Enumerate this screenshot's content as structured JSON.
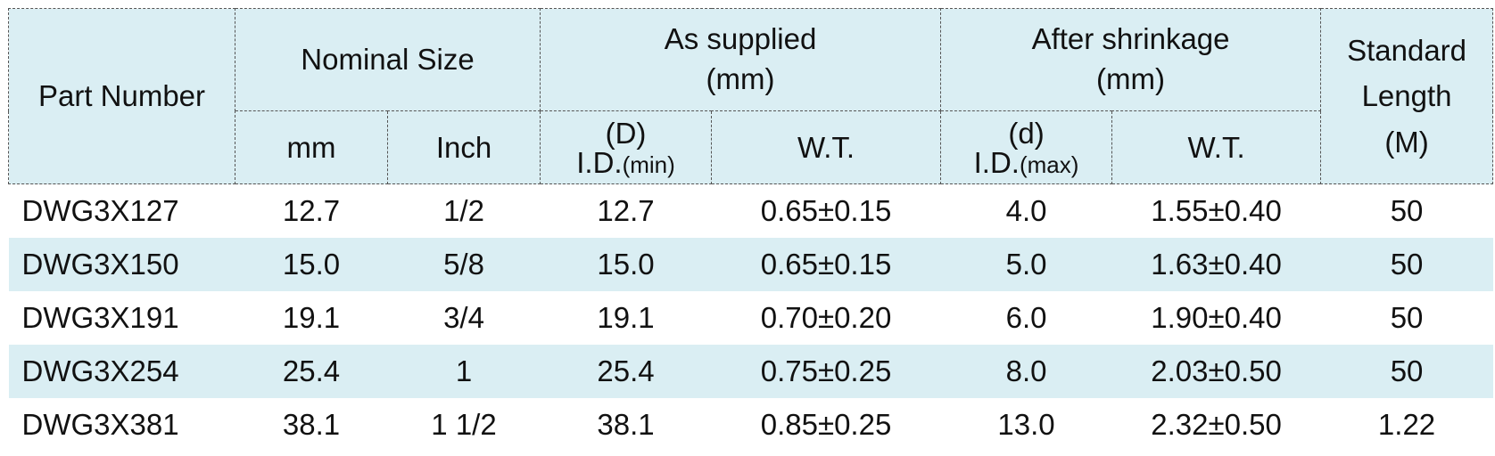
{
  "table": {
    "header": {
      "part_number": "Part Number",
      "nominal_size": {
        "title": "Nominal Size",
        "mm": "mm",
        "inch": "Inch"
      },
      "as_supplied": {
        "title": "As supplied",
        "unit": "(mm)",
        "id_symbol": "(D)",
        "id_label": "I.D.",
        "id_qualifier": "(min)",
        "wt": "W.T."
      },
      "after_shrinkage": {
        "title": "After shrinkage",
        "unit": "(mm)",
        "id_symbol": "(d)",
        "id_label": "I.D.",
        "id_qualifier": "(max)",
        "wt": "W.T."
      },
      "standard_length": {
        "line1": "Standard",
        "line2": "Length",
        "line3": "(M)"
      }
    },
    "rows": [
      [
        "DWG3X127",
        "12.7",
        "1/2",
        "12.7",
        "0.65±0.15",
        "4.0",
        "1.55±0.40",
        "50"
      ],
      [
        "DWG3X150",
        "15.0",
        "5/8",
        "15.0",
        "0.65±0.15",
        "5.0",
        "1.63±0.40",
        "50"
      ],
      [
        "DWG3X191",
        "19.1",
        "3/4",
        "19.1",
        "0.70±0.20",
        "6.0",
        "1.90±0.40",
        "50"
      ],
      [
        "DWG3X254",
        "25.4",
        "1",
        "25.4",
        "0.75±0.25",
        "8.0",
        "2.03±0.50",
        "50"
      ],
      [
        "DWG3X381",
        "38.1",
        "1 1/2",
        "38.1",
        "0.85±0.25",
        "13.0",
        "2.32±0.50",
        "1.22"
      ]
    ]
  }
}
